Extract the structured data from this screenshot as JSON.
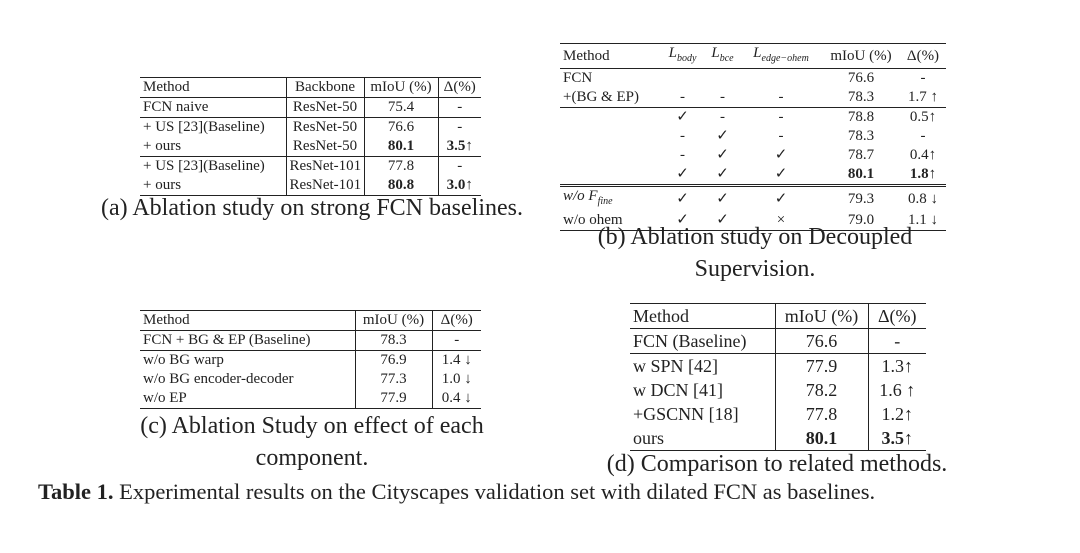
{
  "tables": {
    "a": {
      "header": [
        "Method",
        "Backbone",
        "mIoU (%)",
        "Δ(%)"
      ],
      "rows": [
        [
          "FCN naive",
          "ResNet-50",
          "75.4",
          "-"
        ],
        [
          "+ US [23](Baseline)",
          "ResNet-50",
          "76.6",
          "-"
        ],
        [
          "+ ours",
          "ResNet-50",
          "80.1",
          "3.5↑"
        ],
        [
          "+ US [23](Baseline)",
          "ResNet-101",
          "77.8",
          "-"
        ],
        [
          "+ ours",
          "ResNet-101",
          "80.8",
          "3.0↑"
        ]
      ],
      "caption": "(a) Ablation study on strong FCN baselines."
    },
    "b": {
      "header": [
        "Method",
        {
          "text": "L",
          "sub": "body"
        },
        {
          "text": "L",
          "sub": "bce"
        },
        {
          "text": "L",
          "sub": "edge−ohem"
        },
        "mIoU (%)",
        "Δ(%)"
      ],
      "rows": [
        [
          "FCN",
          null,
          null,
          null,
          "76.6",
          "-"
        ],
        [
          "+(BG & EP)",
          "-",
          "-",
          "-",
          "78.3",
          "1.7 ↑"
        ],
        [
          null,
          "✓",
          "-",
          "-",
          "78.8",
          "0.5↑"
        ],
        [
          null,
          "-",
          "✓",
          "-",
          "78.3",
          "-"
        ],
        [
          null,
          "-",
          "✓",
          "✓",
          "78.7",
          "0.4↑"
        ],
        [
          null,
          "✓",
          "✓",
          "✓",
          "80.1",
          "1.8↑"
        ],
        [
          {
            "text": "w/o F",
            "sub": "fine"
          },
          "✓",
          "✓",
          "✓",
          "79.3",
          "0.8 ↓"
        ],
        [
          "w/o ohem",
          "✓",
          "✓",
          "×",
          "79.0",
          "1.1 ↓"
        ]
      ],
      "caption": "(b) Ablation study on Decoupled Supervision."
    },
    "c": {
      "header": [
        "Method",
        "mIoU (%)",
        "Δ(%)"
      ],
      "rows": [
        [
          "FCN + BG & EP (Baseline)",
          "78.3",
          "-"
        ],
        [
          "w/o BG warp",
          "76.9",
          "1.4 ↓"
        ],
        [
          "w/o BG encoder-decoder",
          "77.3",
          "1.0 ↓"
        ],
        [
          "w/o EP",
          "77.9",
          "0.4 ↓"
        ]
      ],
      "caption": "(c) Ablation Study on effect of each component."
    },
    "d": {
      "header": [
        "Method",
        "mIoU (%)",
        "Δ(%)"
      ],
      "rows": [
        [
          "FCN (Baseline)",
          "76.6",
          "-"
        ],
        [
          "w SPN [42]",
          "77.9",
          "1.3↑"
        ],
        [
          "w DCN [41]",
          "78.2",
          "1.6 ↑"
        ],
        [
          "+GSCNN [18]",
          "77.8",
          "1.2↑"
        ],
        [
          "ours",
          "80.1",
          "3.5↑"
        ]
      ],
      "caption": "(d) Comparison to related methods."
    }
  },
  "main_caption": {
    "label": "Table 1.",
    "text": "Experimental results on the Cityscapes validation set with dilated FCN as baselines."
  }
}
